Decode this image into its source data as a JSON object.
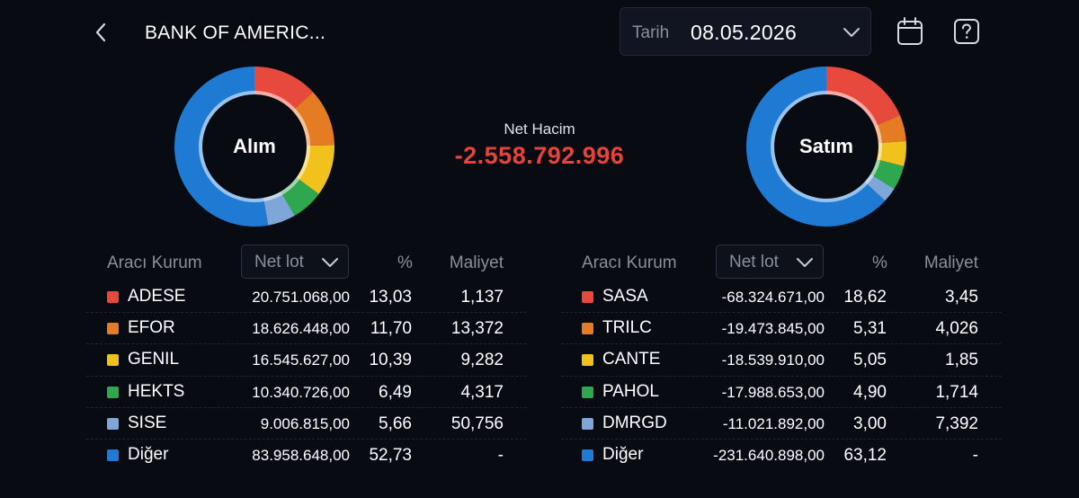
{
  "header": {
    "title": "BANK OF AMERIC...",
    "back_icon": "chevron-left-icon",
    "date_label": "Tarih",
    "date_value": "08.05.2026",
    "calendar_icon": "calendar-icon",
    "help_icon": "help-icon"
  },
  "net_volume": {
    "label": "Net Hacim",
    "value": "-2.558.792.996",
    "color": "#e8433a"
  },
  "colors": {
    "red": "#e8493d",
    "orange": "#e57c24",
    "yellow": "#f1c21b",
    "green": "#2ea74f",
    "lightblue": "#7ea6d9",
    "blue": "#1f7ad4"
  },
  "buy": {
    "donut_label": "Alım",
    "columns": {
      "broker": "Aracı Kurum",
      "lot": "Net lot",
      "pct": "%",
      "cost": "Maliyet"
    },
    "rows": [
      {
        "name": "ADESE",
        "lot": "20.751.068,00",
        "pct": "13,03",
        "cost": "1,137",
        "color": "#e8493d",
        "share": 13.03
      },
      {
        "name": "EFOR",
        "lot": "18.626.448,00",
        "pct": "11,70",
        "cost": "13,372",
        "color": "#e57c24",
        "share": 11.7
      },
      {
        "name": "GENIL",
        "lot": "16.545.627,00",
        "pct": "10,39",
        "cost": "9,282",
        "color": "#f1c21b",
        "share": 10.39
      },
      {
        "name": "HEKTS",
        "lot": "10.340.726,00",
        "pct": "6,49",
        "cost": "4,317",
        "color": "#2ea74f",
        "share": 6.49
      },
      {
        "name": "SISE",
        "lot": "9.006.815,00",
        "pct": "5,66",
        "cost": "50,756",
        "color": "#7ea6d9",
        "share": 5.66
      },
      {
        "name": "Diğer",
        "lot": "83.958.648,00",
        "pct": "52,73",
        "cost": "-",
        "color": "#1f7ad4",
        "share": 52.73
      }
    ]
  },
  "sell": {
    "donut_label": "Satım",
    "columns": {
      "broker": "Aracı Kurum",
      "lot": "Net lot",
      "pct": "%",
      "cost": "Maliyet"
    },
    "rows": [
      {
        "name": "SASA",
        "lot": "-68.324.671,00",
        "pct": "18,62",
        "cost": "3,45",
        "color": "#e8493d",
        "share": 18.62
      },
      {
        "name": "TRILC",
        "lot": "-19.473.845,00",
        "pct": "5,31",
        "cost": "4,026",
        "color": "#e57c24",
        "share": 5.31
      },
      {
        "name": "CANTE",
        "lot": "-18.539.910,00",
        "pct": "5,05",
        "cost": "1,85",
        "color": "#f1c21b",
        "share": 5.05
      },
      {
        "name": "PAHOL",
        "lot": "-17.988.653,00",
        "pct": "4,90",
        "cost": "1,714",
        "color": "#2ea74f",
        "share": 4.9
      },
      {
        "name": "DMRGD",
        "lot": "-11.021.892,00",
        "pct": "3,00",
        "cost": "7,392",
        "color": "#7ea6d9",
        "share": 3.0
      },
      {
        "name": "Diğer",
        "lot": "-231.640.898,00",
        "pct": "63,12",
        "cost": "-",
        "color": "#1f7ad4",
        "share": 63.12
      }
    ]
  }
}
